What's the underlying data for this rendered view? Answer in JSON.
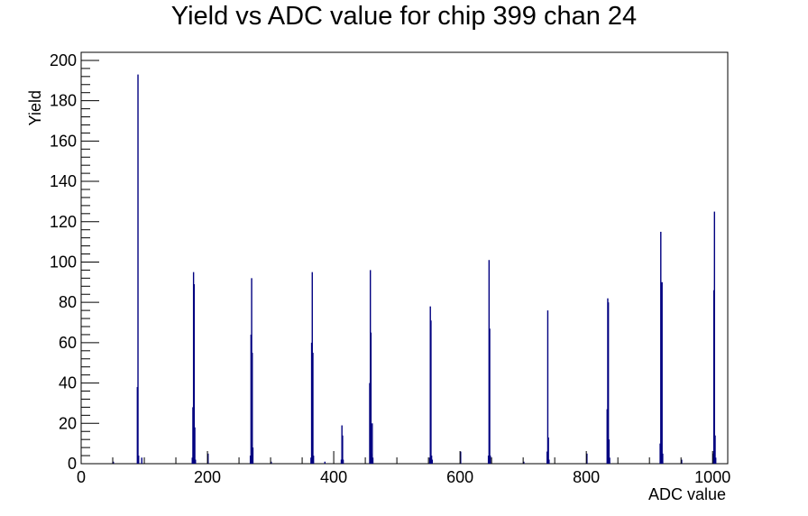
{
  "chart_data": {
    "type": "bar",
    "title": "Yield vs ADC value for chip 399 chan 24",
    "xlabel": "ADC value",
    "ylabel": "Yield",
    "xlim": [
      0,
      1024
    ],
    "ylim": [
      0,
      204
    ],
    "x_ticks": [
      0,
      200,
      400,
      600,
      800,
      1000
    ],
    "y_ticks": [
      0,
      20,
      40,
      60,
      80,
      100,
      120,
      140,
      160,
      180,
      200
    ],
    "grid": false,
    "series": [
      {
        "color": "#000080",
        "bins": [
          {
            "x": 50,
            "y": 1
          },
          {
            "x": 88,
            "y": 38
          },
          {
            "x": 89,
            "y": 193
          },
          {
            "x": 90,
            "y": 4
          },
          {
            "x": 95,
            "y": 3
          },
          {
            "x": 175,
            "y": 3
          },
          {
            "x": 176,
            "y": 28
          },
          {
            "x": 177,
            "y": 95
          },
          {
            "x": 178,
            "y": 89
          },
          {
            "x": 179,
            "y": 18
          },
          {
            "x": 180,
            "y": 2
          },
          {
            "x": 200,
            "y": 5
          },
          {
            "x": 267,
            "y": 4
          },
          {
            "x": 268,
            "y": 64
          },
          {
            "x": 269,
            "y": 92
          },
          {
            "x": 270,
            "y": 55
          },
          {
            "x": 271,
            "y": 8
          },
          {
            "x": 300,
            "y": 1
          },
          {
            "x": 363,
            "y": 3
          },
          {
            "x": 364,
            "y": 60
          },
          {
            "x": 365,
            "y": 95
          },
          {
            "x": 366,
            "y": 55
          },
          {
            "x": 367,
            "y": 4
          },
          {
            "x": 385,
            "y": 1
          },
          {
            "x": 411,
            "y": 2
          },
          {
            "x": 412,
            "y": 19
          },
          {
            "x": 413,
            "y": 14
          },
          {
            "x": 414,
            "y": 2
          },
          {
            "x": 456,
            "y": 40
          },
          {
            "x": 457,
            "y": 96
          },
          {
            "x": 458,
            "y": 65
          },
          {
            "x": 459,
            "y": 5
          },
          {
            "x": 460,
            "y": 20
          },
          {
            "x": 461,
            "y": 3
          },
          {
            "x": 551,
            "y": 3
          },
          {
            "x": 552,
            "y": 78
          },
          {
            "x": 553,
            "y": 71
          },
          {
            "x": 554,
            "y": 4
          },
          {
            "x": 555,
            "y": 2
          },
          {
            "x": 600,
            "y": 6
          },
          {
            "x": 644,
            "y": 4
          },
          {
            "x": 645,
            "y": 101
          },
          {
            "x": 646,
            "y": 67
          },
          {
            "x": 647,
            "y": 4
          },
          {
            "x": 700,
            "y": 1
          },
          {
            "x": 737,
            "y": 6
          },
          {
            "x": 738,
            "y": 76
          },
          {
            "x": 739,
            "y": 13
          },
          {
            "x": 740,
            "y": 2
          },
          {
            "x": 800,
            "y": 5
          },
          {
            "x": 832,
            "y": 27
          },
          {
            "x": 833,
            "y": 82
          },
          {
            "x": 834,
            "y": 80
          },
          {
            "x": 835,
            "y": 12
          },
          {
            "x": 836,
            "y": 3
          },
          {
            "x": 916,
            "y": 10
          },
          {
            "x": 917,
            "y": 115
          },
          {
            "x": 918,
            "y": 22
          },
          {
            "x": 919,
            "y": 90
          },
          {
            "x": 920,
            "y": 5
          },
          {
            "x": 950,
            "y": 2
          },
          {
            "x": 1000,
            "y": 5
          },
          {
            "x": 1001,
            "y": 86
          },
          {
            "x": 1002,
            "y": 125
          },
          {
            "x": 1003,
            "y": 14
          },
          {
            "x": 1004,
            "y": 3
          }
        ]
      }
    ]
  }
}
